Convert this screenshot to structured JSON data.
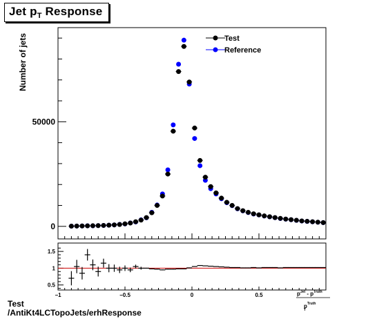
{
  "chart_data": {
    "type": "scatter",
    "title_prefix": "Jet p",
    "title_sub": "T",
    "title_suffix": " Response",
    "ylabel": "Number of jets",
    "main_yticks": [
      "0",
      "50000"
    ],
    "legend": [
      "Test",
      "Reference"
    ],
    "colors": {
      "Test": "#000000",
      "Reference": "#0000ff",
      "ratio_line": "#cc0000"
    },
    "x": [
      -0.9,
      -0.86,
      -0.82,
      -0.78,
      -0.74,
      -0.7,
      -0.66,
      -0.62,
      -0.58,
      -0.54,
      -0.5,
      -0.46,
      -0.42,
      -0.38,
      -0.34,
      -0.3,
      -0.26,
      -0.22,
      -0.18,
      -0.14,
      -0.1,
      -0.06,
      -0.02,
      0.02,
      0.06,
      0.1,
      0.14,
      0.18,
      0.22,
      0.26,
      0.3,
      0.34,
      0.38,
      0.42,
      0.46,
      0.5,
      0.54,
      0.58,
      0.62,
      0.66,
      0.7,
      0.74,
      0.78,
      0.82,
      0.86,
      0.9,
      0.94,
      0.98
    ],
    "series": [
      {
        "name": "Test",
        "values": [
          100,
          150,
          200,
          250,
          300,
          350,
          450,
          550,
          700,
          900,
          1200,
          1600,
          2200,
          3000,
          4200,
          6500,
          10000,
          14500,
          25000,
          45500,
          74000,
          86000,
          69000,
          47000,
          31500,
          23500,
          19000,
          16000,
          13500,
          11500,
          10000,
          8500,
          7500,
          6700,
          6000,
          5500,
          5000,
          4600,
          4200,
          3800,
          3500,
          3200,
          2900,
          2600,
          2400,
          2200,
          2000,
          1800
        ]
      },
      {
        "name": "Reference",
        "values": [
          110,
          160,
          190,
          260,
          280,
          370,
          420,
          560,
          680,
          920,
          1150,
          1650,
          2100,
          3100,
          4100,
          6700,
          10200,
          15500,
          27000,
          48500,
          77500,
          89000,
          68000,
          42000,
          29000,
          22000,
          18000,
          15500,
          13200,
          11300,
          9900,
          8400,
          7400,
          6600,
          5900,
          5450,
          4950,
          4550,
          4150,
          3750,
          3450,
          3150,
          2850,
          2560,
          2370,
          2170,
          1980,
          1780
        ]
      }
    ],
    "main_ylim": [
      -6000,
      95000
    ],
    "xlim": [
      -1,
      1
    ],
    "x_ticks": [
      -1,
      -0.5,
      0,
      0.5
    ],
    "x_tick_labels": [
      "−1",
      "−0.5",
      "0",
      "0.5"
    ],
    "ratio": [
      0.7,
      1.05,
      0.85,
      1.4,
      1.1,
      0.9,
      1.15,
      1.0,
      1.0,
      0.95,
      1.0,
      0.95,
      1.05,
      1.0,
      1.0,
      0.98,
      0.97,
      0.95,
      0.97,
      0.97,
      0.98,
      0.98,
      1.01,
      1.05,
      1.08,
      1.07,
      1.06,
      1.05,
      1.04,
      1.03,
      1.02,
      1.02,
      1.01,
      1.01,
      1.02,
      1.01,
      1.02,
      1.02,
      1.02,
      1.01,
      1.02,
      1.02,
      1.02,
      1.02,
      1.02,
      1.02,
      1.02,
      1.02
    ],
    "ratio_ylim": [
      0.35,
      1.75
    ],
    "ratio_yticks": [
      0.5,
      1,
      1.5
    ],
    "ratio_ytick_labels": [
      "0.5",
      "1",
      "1.5"
    ],
    "ratio_reference": 1,
    "xlabel_numerator": "p",
    "xlabel_num_sup": "Jet",
    "xlabel_mid": " - p",
    "xlabel_mid_sup": "Truth",
    "xlabel_denominator": "p",
    "xlabel_den_sup": "Truth",
    "xlabel_sub": "T",
    "grid": false,
    "legend_position": "top-right"
  },
  "footer": {
    "line1": "Test",
    "line2": "/AntiKt4LCTopoJets/erhResponse"
  }
}
